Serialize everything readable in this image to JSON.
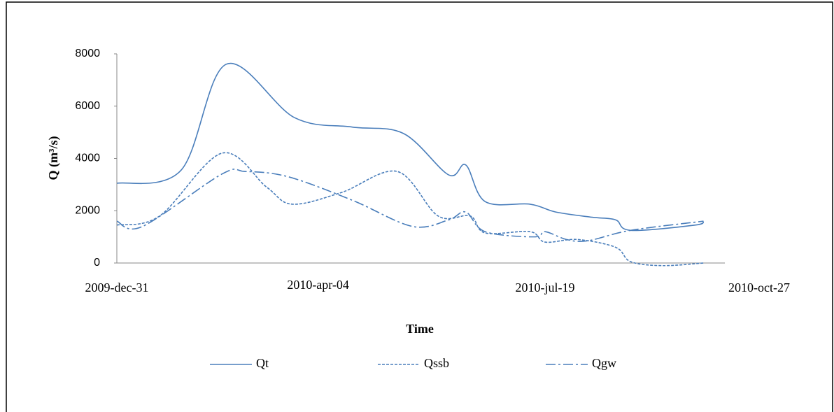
{
  "chart_data": {
    "type": "line",
    "x_label": "Time",
    "y_label": "Q (m³/s)",
    "xlim": [
      0,
      300
    ],
    "xticks": [
      {
        "value": 0,
        "label": "2009-dec-31"
      },
      {
        "value": 94,
        "label": "2010-apr-04"
      },
      {
        "value": 200,
        "label": "2010-jul-19"
      },
      {
        "value": 300,
        "label": "2010-oct-27"
      }
    ],
    "ylim": [
      0,
      8000
    ],
    "yticks": [
      0,
      2000,
      4000,
      6000,
      8000
    ],
    "legend": "bottom",
    "series": [
      {
        "name": "Qt",
        "color": "#4a7ebb",
        "line_style": "solid",
        "x": [
          0,
          30,
          51,
          83,
          110,
          134,
          155,
          163,
          172,
          193,
          205,
          222,
          233,
          240,
          270,
          274
        ],
        "values": [
          3050,
          3550,
          7600,
          5560,
          5200,
          4950,
          3370,
          3750,
          2350,
          2250,
          1950,
          1750,
          1650,
          1250,
          1450,
          1600
        ]
      },
      {
        "name": "Qssb",
        "color": "#4a7ebb",
        "line_style": "dashed",
        "x": [
          0,
          20,
          49,
          70,
          82,
          105,
          131,
          150,
          165,
          172,
          193,
          200,
          215,
          233,
          240,
          255,
          274
        ],
        "values": [
          1450,
          1800,
          4200,
          2900,
          2250,
          2700,
          3500,
          1800,
          1800,
          1150,
          1200,
          800,
          900,
          600,
          50,
          -100,
          0
        ]
      },
      {
        "name": "Qgw",
        "color": "#4a7ebb",
        "line_style": "dash-dot",
        "x": [
          0,
          12,
          49,
          60,
          80,
          110,
          138,
          155,
          163,
          172,
          195,
          200,
          210,
          220,
          240,
          274
        ],
        "values": [
          1600,
          1400,
          3400,
          3500,
          3300,
          2400,
          1400,
          1650,
          1950,
          1200,
          1000,
          1200,
          900,
          850,
          1250,
          1600
        ]
      }
    ]
  }
}
